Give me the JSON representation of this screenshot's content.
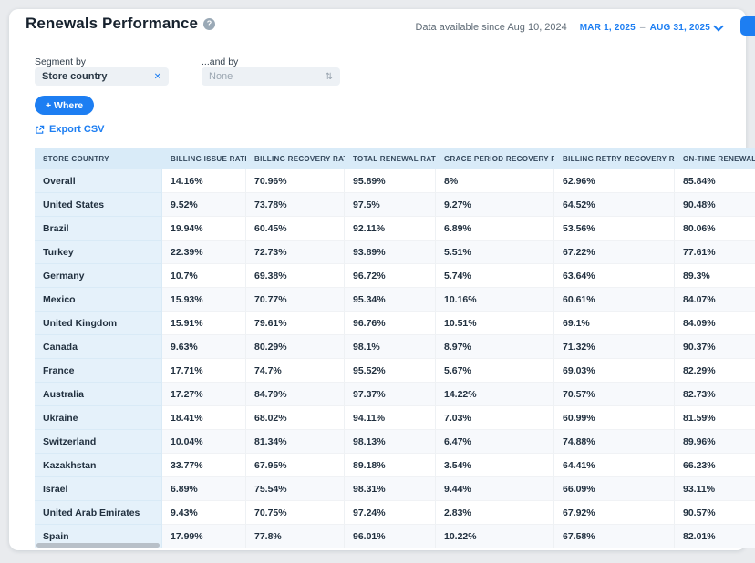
{
  "header": {
    "title": "Renewals Performance",
    "data_available": "Data available since Aug 10, 2024",
    "date_range_start": "MAR 1, 2025",
    "date_range_separator": "–",
    "date_range_end": "AUG 31, 2025"
  },
  "filters": {
    "segment_by_label": "Segment by",
    "segment_by_value": "Store country",
    "and_by_label": "...and by",
    "and_by_value": "None",
    "where_button_label": "+ Where",
    "export_csv_label": "Export CSV"
  },
  "icons": {
    "title_info_glyph": "?",
    "column_info_glyph": "?",
    "clear_glyph": "✕",
    "updown_glyph": "⇅"
  },
  "colors": {
    "accent_blue": "#1d7ef2",
    "table_header_bg": "#d9ebf8",
    "first_column_bg": "#e5f1fa",
    "stripe_bg": "#f7f9fc",
    "text_dark": "#21303f"
  },
  "table": {
    "columns": [
      {
        "label": "Store country",
        "info": false
      },
      {
        "label": "Billing issue rate",
        "info": true
      },
      {
        "label": "Billing recovery rate",
        "info": true
      },
      {
        "label": "Total renewal rate",
        "info": true
      },
      {
        "label": "Grace period recovery rate",
        "info": true
      },
      {
        "label": "Billing retry recovery rate",
        "info": true
      },
      {
        "label": "On-time renewal rate",
        "info": true
      }
    ],
    "rows": [
      {
        "country": "Overall",
        "values": [
          "14.16%",
          "70.96%",
          "95.89%",
          "8%",
          "62.96%",
          "85.84%"
        ]
      },
      {
        "country": "United States",
        "values": [
          "9.52%",
          "73.78%",
          "97.5%",
          "9.27%",
          "64.52%",
          "90.48%"
        ]
      },
      {
        "country": "Brazil",
        "values": [
          "19.94%",
          "60.45%",
          "92.11%",
          "6.89%",
          "53.56%",
          "80.06%"
        ]
      },
      {
        "country": "Turkey",
        "values": [
          "22.39%",
          "72.73%",
          "93.89%",
          "5.51%",
          "67.22%",
          "77.61%"
        ]
      },
      {
        "country": "Germany",
        "values": [
          "10.7%",
          "69.38%",
          "96.72%",
          "5.74%",
          "63.64%",
          "89.3%"
        ]
      },
      {
        "country": "Mexico",
        "values": [
          "15.93%",
          "70.77%",
          "95.34%",
          "10.16%",
          "60.61%",
          "84.07%"
        ]
      },
      {
        "country": "United Kingdom",
        "values": [
          "15.91%",
          "79.61%",
          "96.76%",
          "10.51%",
          "69.1%",
          "84.09%"
        ]
      },
      {
        "country": "Canada",
        "values": [
          "9.63%",
          "80.29%",
          "98.1%",
          "8.97%",
          "71.32%",
          "90.37%"
        ]
      },
      {
        "country": "France",
        "values": [
          "17.71%",
          "74.7%",
          "95.52%",
          "5.67%",
          "69.03%",
          "82.29%"
        ]
      },
      {
        "country": "Australia",
        "values": [
          "17.27%",
          "84.79%",
          "97.37%",
          "14.22%",
          "70.57%",
          "82.73%"
        ]
      },
      {
        "country": "Ukraine",
        "values": [
          "18.41%",
          "68.02%",
          "94.11%",
          "7.03%",
          "60.99%",
          "81.59%"
        ]
      },
      {
        "country": "Switzerland",
        "values": [
          "10.04%",
          "81.34%",
          "98.13%",
          "6.47%",
          "74.88%",
          "89.96%"
        ]
      },
      {
        "country": "Kazakhstan",
        "values": [
          "33.77%",
          "67.95%",
          "89.18%",
          "3.54%",
          "64.41%",
          "66.23%"
        ]
      },
      {
        "country": "Israel",
        "values": [
          "6.89%",
          "75.54%",
          "98.31%",
          "9.44%",
          "66.09%",
          "93.11%"
        ]
      },
      {
        "country": "United Arab Emirates",
        "values": [
          "9.43%",
          "70.75%",
          "97.24%",
          "2.83%",
          "67.92%",
          "90.57%"
        ]
      },
      {
        "country": "Spain",
        "values": [
          "17.99%",
          "77.8%",
          "96.01%",
          "10.22%",
          "67.58%",
          "82.01%"
        ]
      }
    ]
  }
}
